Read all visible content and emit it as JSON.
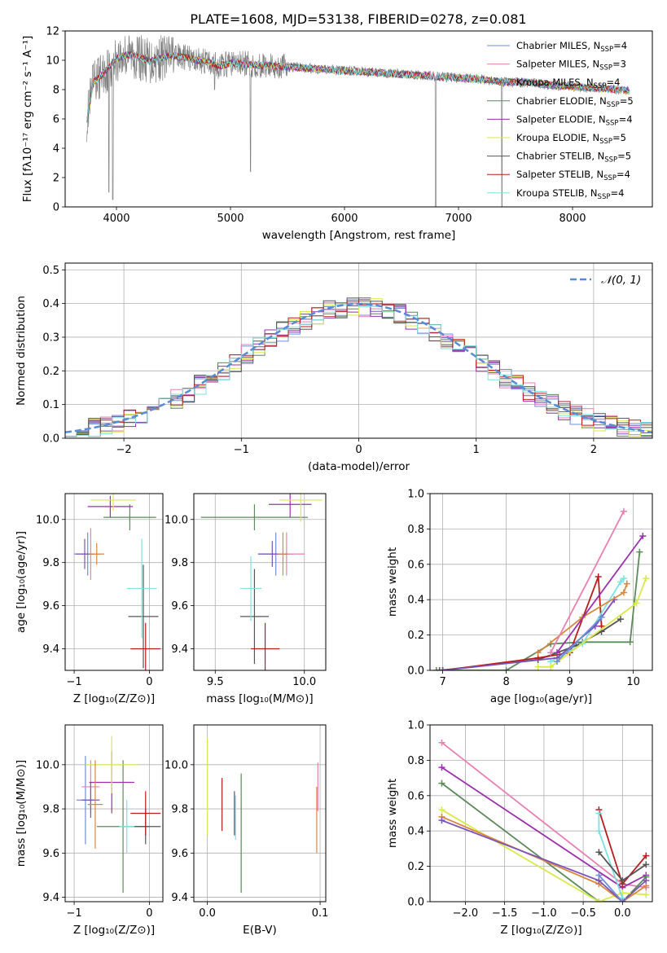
{
  "figure_title": "PLATE=1608, MJD=53138, FIBERID=0278, z=0.081",
  "colors": {
    "Chabrier MILES": "#6f8fd8",
    "Salpeter MILES": "#e87fb3",
    "Kroupa MILES": "#7b52b9",
    "Chabrier ELODIE": "#5c8a5a",
    "Salpeter ELODIE": "#9b2fae",
    "Kroupa ELODIE": "#d9e84a",
    "Chabrier STELIB": "#555555",
    "Salpeter STELIB": "#b81c1c",
    "Kroupa STELIB": "#7ee0e0",
    "orange": "#d9873e",
    "data": "#808080",
    "gauss": "#5a8ad6",
    "grid": "#b0b0b0"
  },
  "chart_data": [
    {
      "id": "spectrum",
      "type": "line",
      "title": "PLATE=1608, MJD=53138, FIBERID=0278, z=0.081",
      "xlabel": "wavelength [Angstrom, rest frame]",
      "ylabel": "Flux [fλ10⁻¹⁷ erg cm⁻² s⁻¹ A⁻¹]",
      "xlim": [
        3550,
        8700
      ],
      "ylim": [
        0,
        12
      ],
      "xticks": [
        4000,
        5000,
        6000,
        7000,
        8000
      ],
      "yticks": [
        0,
        2,
        4,
        6,
        8,
        10,
        12
      ],
      "grid": false,
      "legend_position": "top-right",
      "legend": [
        {
          "base": "Chabrier MILES, N",
          "sub": "SSP",
          "tail": "=4"
        },
        {
          "base": "Salpeter MILES, N",
          "sub": "SSP",
          "tail": "=3"
        },
        {
          "base": "Kroupa MILES, N",
          "sub": "SSP",
          "tail": "=4"
        },
        {
          "base": "Chabrier ELODIE, N",
          "sub": "SSP",
          "tail": "=5"
        },
        {
          "base": "Salpeter ELODIE, N",
          "sub": "SSP",
          "tail": "=4"
        },
        {
          "base": "Kroupa ELODIE, N",
          "sub": "SSP",
          "tail": "=5"
        },
        {
          "base": "Chabrier STELIB, N",
          "sub": "SSP",
          "tail": "=5"
        },
        {
          "base": "Salpeter STELIB, N",
          "sub": "SSP",
          "tail": "=4"
        },
        {
          "base": "Kroupa STELIB, N",
          "sub": "SSP",
          "tail": "=4"
        }
      ],
      "continuum": {
        "x": [
          3740,
          3800,
          3900,
          4000,
          4100,
          4200,
          4300,
          4400,
          4500,
          4600,
          4700,
          4800,
          4900,
          5000,
          5200,
          5400,
          5600,
          5800,
          6000,
          6200,
          6400,
          6600,
          6800,
          7000,
          7200,
          7400,
          7600,
          7800,
          8000,
          8200,
          8400,
          8500
        ],
        "y": [
          6.0,
          8.5,
          9.2,
          10.1,
          10.4,
          10.2,
          9.9,
          10.2,
          10.3,
          10.2,
          10.0,
          9.9,
          9.6,
          9.8,
          9.7,
          9.6,
          9.5,
          9.4,
          9.3,
          9.2,
          9.1,
          9.0,
          8.9,
          8.8,
          8.7,
          8.5,
          8.5,
          8.3,
          8.2,
          8.1,
          8.0,
          7.9
        ]
      },
      "absorption_features": [
        {
          "x": 3934,
          "y": 1.0
        },
        {
          "x": 3968,
          "y": 0.5
        },
        {
          "x": 4861,
          "y": 8.0
        },
        {
          "x": 5175,
          "y": 2.4
        },
        {
          "x": 6800,
          "y": 0.0
        },
        {
          "x": 7380,
          "y": 0.0
        }
      ]
    },
    {
      "id": "residuals",
      "type": "histogram",
      "xlabel": "(data-model)/error",
      "ylabel": "Normed distribution",
      "xlim": [
        -2.5,
        2.5
      ],
      "ylim": [
        0,
        0.52
      ],
      "xticks": [
        -2,
        -1,
        0,
        1,
        2
      ],
      "yticks": [
        0,
        0.1,
        0.2,
        0.3,
        0.4,
        0.5
      ],
      "grid": true,
      "legend_position": "top-right",
      "legend": [
        {
          "name": "𝒩(0, 1)"
        }
      ],
      "bins_start": -2.5,
      "bin_width": 0.1,
      "gaussian": {
        "mu": 0,
        "sigma": 1
      }
    },
    {
      "id": "age_vs_Z",
      "type": "errorbar",
      "xlabel": "Z [log₁₀(Z/Z⊙)]",
      "ylabel": "age  [log₁₀(age/yr)]",
      "xlim": [
        -1.12,
        0.18
      ],
      "ylim": [
        9.3,
        10.12
      ],
      "xticks": [
        -1,
        0
      ],
      "yticks": [
        9.4,
        9.6,
        9.8,
        10.0
      ],
      "grid": true,
      "points": [
        {
          "model": "Chabrier MILES",
          "x": -0.82,
          "y": 9.84,
          "xerr": 0.18,
          "yerr": 0.1
        },
        {
          "model": "Salpeter MILES",
          "x": -0.78,
          "y": 9.84,
          "xerr": 0.12,
          "yerr": 0.12
        },
        {
          "model": "Kroupa MILES",
          "x": -0.86,
          "y": 9.84,
          "xerr": 0.12,
          "yerr": 0.07
        },
        {
          "model": "Chabrier ELODIE",
          "x": -0.26,
          "y": 10.01,
          "xerr": 0.35,
          "yerr": 0.06
        },
        {
          "model": "Salpeter ELODIE",
          "x": -0.52,
          "y": 10.06,
          "xerr": 0.3,
          "yerr": 0.05
        },
        {
          "model": "Kroupa ELODIE",
          "x": -0.48,
          "y": 10.09,
          "xerr": 0.3,
          "yerr": 0.05
        },
        {
          "model": "Chabrier STELIB",
          "x": -0.08,
          "y": 9.55,
          "xerr": 0.2,
          "yerr": 0.24
        },
        {
          "model": "Salpeter STELIB",
          "x": -0.05,
          "y": 9.4,
          "xerr": 0.2,
          "yerr": 0.12
        },
        {
          "model": "Kroupa STELIB",
          "x": -0.1,
          "y": 9.68,
          "xerr": 0.2,
          "yerr": 0.23
        },
        {
          "model": "orange",
          "x": -0.7,
          "y": 9.84,
          "xerr": 0.1,
          "yerr": 0.05
        }
      ]
    },
    {
      "id": "age_vs_mass",
      "type": "errorbar",
      "xlabel": "mass [log₁₀(M/M⊙)]",
      "ylabel": "",
      "xlim": [
        9.38,
        10.12
      ],
      "ylim": [
        9.3,
        10.12
      ],
      "xticks": [
        9.5,
        10.0
      ],
      "yticks": [
        9.4,
        9.6,
        9.8,
        10.0
      ],
      "grid": true,
      "points": [
        {
          "model": "Chabrier MILES",
          "x": 9.84,
          "y": 9.84,
          "xerr": 0.1,
          "yerr": 0.1
        },
        {
          "model": "Salpeter MILES",
          "x": 9.9,
          "y": 9.84,
          "xerr": 0.1,
          "yerr": 0.1
        },
        {
          "model": "Kroupa MILES",
          "x": 9.82,
          "y": 9.84,
          "xerr": 0.08,
          "yerr": 0.06
        },
        {
          "model": "Chabrier ELODIE",
          "x": 9.72,
          "y": 10.01,
          "xerr": 0.3,
          "yerr": 0.06
        },
        {
          "model": "Salpeter ELODIE",
          "x": 9.92,
          "y": 10.07,
          "xerr": 0.12,
          "yerr": 0.06
        },
        {
          "model": "Kroupa ELODIE",
          "x": 9.98,
          "y": 10.09,
          "xerr": 0.12,
          "yerr": 0.1
        },
        {
          "model": "Chabrier STELIB",
          "x": 9.72,
          "y": 9.55,
          "xerr": 0.08,
          "yerr": 0.22
        },
        {
          "model": "Salpeter STELIB",
          "x": 9.78,
          "y": 9.4,
          "xerr": 0.08,
          "yerr": 0.12
        },
        {
          "model": "Kroupa STELIB",
          "x": 9.7,
          "y": 9.68,
          "xerr": 0.06,
          "yerr": 0.15
        },
        {
          "model": "orange",
          "x": 9.88,
          "y": 9.84,
          "xerr": 0.03,
          "yerr": 0.1
        }
      ]
    },
    {
      "id": "mass_weight_vs_age",
      "type": "line",
      "xlabel": "age  [log₁₀(age/yr)]",
      "ylabel": "mass weight",
      "xlim": [
        6.8,
        10.3
      ],
      "ylim": [
        0,
        1.0
      ],
      "xticks": [
        7,
        8,
        9,
        10
      ],
      "yticks": [
        0.0,
        0.2,
        0.4,
        0.6,
        0.8,
        1.0
      ],
      "grid": true,
      "series": [
        {
          "model": "Chabrier ELODIE",
          "x": [
            6.9,
            7.0,
            8.0,
            8.7,
            9.2,
            9.95,
            10.1
          ],
          "y": [
            0.0,
            0.0,
            0.0,
            0.15,
            0.16,
            0.16,
            0.67
          ]
        },
        {
          "model": "Chabrier STELIB",
          "x": [
            6.95,
            8.5,
            9.1,
            9.5,
            9.8
          ],
          "y": [
            0.0,
            0.06,
            0.14,
            0.22,
            0.29
          ]
        },
        {
          "model": "Salpeter STELIB",
          "x": [
            7.0,
            8.5,
            9.0,
            9.45,
            9.5
          ],
          "y": [
            0.0,
            0.07,
            0.1,
            0.53,
            0.25
          ]
        },
        {
          "model": "Kroupa STELIB",
          "x": [
            8.7,
            9.2,
            9.8,
            9.85
          ],
          "y": [
            0.05,
            0.15,
            0.5,
            0.52
          ]
        },
        {
          "model": "Kroupa MILES",
          "x": [
            7.0,
            8.8,
            9.4,
            9.7
          ],
          "y": [
            0.0,
            0.07,
            0.25,
            0.4
          ]
        },
        {
          "model": "orange",
          "x": [
            8.5,
            9.2,
            9.85,
            9.9
          ],
          "y": [
            0.1,
            0.3,
            0.44,
            0.49
          ]
        },
        {
          "model": "Salpeter ELODIE",
          "x": [
            8.8,
            10.15
          ],
          "y": [
            0.1,
            0.76
          ]
        },
        {
          "model": "Salpeter MILES",
          "x": [
            8.7,
            9.85
          ],
          "y": [
            0.1,
            0.9
          ]
        },
        {
          "model": "Kroupa ELODIE",
          "x": [
            8.5,
            8.7,
            10.05,
            10.2
          ],
          "y": [
            0.02,
            0.02,
            0.38,
            0.52
          ]
        },
        {
          "model": "Chabrier MILES",
          "x": [
            8.8,
            9.5
          ],
          "y": [
            0.05,
            0.3
          ]
        }
      ]
    },
    {
      "id": "mass_vs_Z",
      "type": "errorbar",
      "xlabel": "Z [log₁₀(Z/Z⊙)]",
      "ylabel": "mass [log₁₀(M/M⊙)]",
      "xlim": [
        -1.12,
        0.18
      ],
      "ylim": [
        9.38,
        10.18
      ],
      "xticks": [
        -1,
        0
      ],
      "yticks": [
        9.4,
        9.6,
        9.8,
        10.0
      ],
      "grid": true,
      "points": [
        {
          "model": "Chabrier MILES",
          "x": -0.85,
          "y": 9.84,
          "xerr": 0.12,
          "yerr": 0.2
        },
        {
          "model": "Salpeter MILES",
          "x": -0.78,
          "y": 9.9,
          "xerr": 0.12,
          "yerr": 0.12
        },
        {
          "model": "Kroupa MILES",
          "x": -0.78,
          "y": 9.84,
          "xerr": 0.12,
          "yerr": 0.08
        },
        {
          "model": "Chabrier ELODIE",
          "x": -0.35,
          "y": 9.72,
          "xerr": 0.35,
          "yerr": 0.3
        },
        {
          "model": "Salpeter ELODIE",
          "x": -0.5,
          "y": 9.92,
          "xerr": 0.3,
          "yerr": 0.14
        },
        {
          "model": "Kroupa ELODIE",
          "x": -0.5,
          "y": 10.0,
          "xerr": 0.35,
          "yerr": 0.13
        },
        {
          "model": "Chabrier STELIB",
          "x": -0.05,
          "y": 9.72,
          "xerr": 0.2,
          "yerr": 0.08
        },
        {
          "model": "Salpeter STELIB",
          "x": -0.05,
          "y": 9.78,
          "xerr": 0.2,
          "yerr": 0.1
        },
        {
          "model": "Kroupa STELIB",
          "x": -0.3,
          "y": 9.72,
          "xerr": 0.1,
          "yerr": 0.12
        },
        {
          "model": "orange",
          "x": -0.72,
          "y": 9.82,
          "xerr": 0.1,
          "yerr": 0.2
        }
      ]
    },
    {
      "id": "mass_vs_ebv",
      "type": "errorbar",
      "xlabel": "E(B-V)",
      "ylabel": "",
      "xlim": [
        -0.012,
        0.105
      ],
      "ylim": [
        9.38,
        10.18
      ],
      "xticks": [
        0.0,
        0.1
      ],
      "yticks": [
        9.4,
        9.6,
        9.8,
        10.0
      ],
      "grid": true,
      "points": [
        {
          "model": "Kroupa ELODIE",
          "x": 0.0,
          "y": 9.9,
          "xerr": 0,
          "yerr": 0.22
        },
        {
          "model": "Salpeter STELIB",
          "x": 0.013,
          "y": 9.82,
          "xerr": 0,
          "yerr": 0.12
        },
        {
          "model": "Chabrier STELIB",
          "x": 0.024,
          "y": 9.78,
          "xerr": 0,
          "yerr": 0.1
        },
        {
          "model": "Kroupa STELIB",
          "x": 0.025,
          "y": 9.76,
          "xerr": 0,
          "yerr": 0.1
        },
        {
          "model": "Chabrier ELODIE",
          "x": 0.03,
          "y": 9.69,
          "xerr": 0,
          "yerr": 0.27
        },
        {
          "model": "Salpeter MILES",
          "x": 0.098,
          "y": 9.9,
          "xerr": 0,
          "yerr": 0.11
        },
        {
          "model": "orange",
          "x": 0.097,
          "y": 9.75,
          "xerr": 0,
          "yerr": 0.15
        }
      ]
    },
    {
      "id": "mass_weight_vs_Z",
      "type": "line",
      "xlabel": "Z [log₁₀(Z/Z⊙)]",
      "ylabel": "mass weight",
      "xlim": [
        -2.45,
        0.38
      ],
      "ylim": [
        0,
        1.0
      ],
      "xticks": [
        -2.0,
        -1.5,
        -1.0,
        -0.5,
        0.0
      ],
      "yticks": [
        0.0,
        0.2,
        0.4,
        0.6,
        0.8,
        1.0
      ],
      "grid": true,
      "series": [
        {
          "model": "Salpeter MILES",
          "x": [
            -2.3,
            0.0,
            0.3
          ],
          "y": [
            0.9,
            0.1,
            0.08
          ]
        },
        {
          "model": "Salpeter ELODIE",
          "x": [
            -2.3,
            0.0,
            0.3
          ],
          "y": [
            0.76,
            0.08,
            0.15
          ]
        },
        {
          "model": "Chabrier ELODIE",
          "x": [
            -2.3,
            -0.3,
            0.0,
            0.3
          ],
          "y": [
            0.67,
            0.0,
            0.0,
            0.14
          ]
        },
        {
          "model": "Kroupa ELODIE",
          "x": [
            -2.3,
            -0.3,
            0.0,
            0.3
          ],
          "y": [
            0.52,
            0.0,
            0.05,
            0.04
          ]
        },
        {
          "model": "orange",
          "x": [
            -2.3,
            -0.3,
            0.0,
            0.3
          ],
          "y": [
            0.48,
            0.1,
            0.0,
            0.09
          ]
        },
        {
          "model": "Kroupa MILES",
          "x": [
            -2.3,
            -0.3,
            0.0,
            0.3
          ],
          "y": [
            0.46,
            0.12,
            0.0,
            0.12
          ]
        },
        {
          "model": "Salpeter STELIB",
          "x": [
            -0.3,
            0.0,
            0.3
          ],
          "y": [
            0.52,
            0.1,
            0.26
          ]
        },
        {
          "model": "Kroupa STELIB",
          "x": [
            -0.3,
            -0.3,
            0.0
          ],
          "y": [
            0.5,
            0.4,
            0.02
          ]
        },
        {
          "model": "Chabrier STELIB",
          "x": [
            -0.3,
            0.0,
            0.3
          ],
          "y": [
            0.28,
            0.12,
            0.21
          ]
        },
        {
          "model": "Chabrier MILES",
          "x": [
            -0.3,
            0.0
          ],
          "y": [
            0.15,
            0.0
          ]
        }
      ]
    }
  ]
}
